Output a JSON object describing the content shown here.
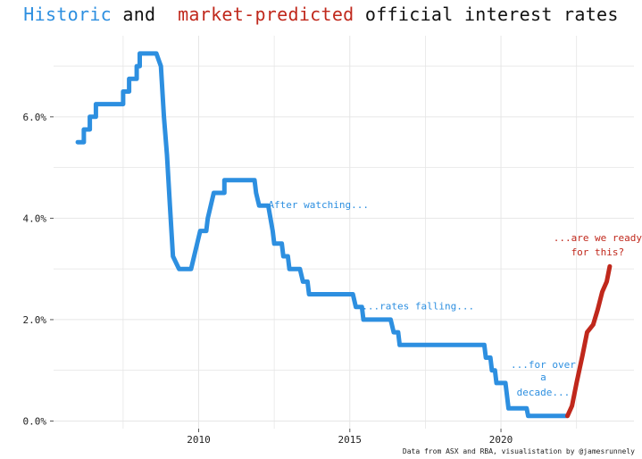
{
  "title": {
    "part1": "Historic",
    "part2": " and  ",
    "part3": "market-predicted",
    "part4": " official interest rates"
  },
  "footer": "Data from ASX and RBA, visualistation by @jamesrunnely",
  "colors": {
    "historic": "#2d8fe0",
    "predicted": "#c0281c",
    "grid": "#e6e6e6",
    "text": "#222222"
  },
  "chart_data": {
    "type": "line",
    "title": "Historic and market-predicted official interest rates",
    "xlabel": "",
    "ylabel": "",
    "xlim": [
      2005.2,
      2024.4
    ],
    "ylim": [
      -0.15,
      7.6
    ],
    "x_ticks": [
      2010,
      2015,
      2020
    ],
    "x_tick_labels": [
      "2010",
      "2015",
      "2020"
    ],
    "y_ticks": [
      0,
      2,
      4,
      6
    ],
    "y_tick_labels": [
      "0.0%",
      "2.0%",
      "4.0%",
      "6.0%"
    ],
    "grid": true,
    "series": [
      {
        "key": "historic",
        "color": "#2d8fe0",
        "points": [
          [
            2006.0,
            5.5
          ],
          [
            2006.2,
            5.5
          ],
          [
            2006.2,
            5.75
          ],
          [
            2006.4,
            5.75
          ],
          [
            2006.4,
            6.0
          ],
          [
            2006.6,
            6.0
          ],
          [
            2006.6,
            6.25
          ],
          [
            2007.5,
            6.25
          ],
          [
            2007.5,
            6.5
          ],
          [
            2007.7,
            6.5
          ],
          [
            2007.7,
            6.75
          ],
          [
            2007.95,
            6.75
          ],
          [
            2007.95,
            7.0
          ],
          [
            2008.05,
            7.0
          ],
          [
            2008.05,
            7.25
          ],
          [
            2008.6,
            7.25
          ],
          [
            2008.75,
            7.0
          ],
          [
            2008.85,
            6.0
          ],
          [
            2008.95,
            5.25
          ],
          [
            2009.05,
            4.25
          ],
          [
            2009.15,
            3.25
          ],
          [
            2009.35,
            3.0
          ],
          [
            2009.75,
            3.0
          ],
          [
            2009.85,
            3.25
          ],
          [
            2009.95,
            3.5
          ],
          [
            2010.05,
            3.75
          ],
          [
            2010.25,
            3.75
          ],
          [
            2010.3,
            4.0
          ],
          [
            2010.5,
            4.5
          ],
          [
            2010.85,
            4.5
          ],
          [
            2010.85,
            4.75
          ],
          [
            2011.85,
            4.75
          ],
          [
            2011.9,
            4.5
          ],
          [
            2012.0,
            4.25
          ],
          [
            2012.3,
            4.25
          ],
          [
            2012.45,
            3.75
          ],
          [
            2012.5,
            3.5
          ],
          [
            2012.75,
            3.5
          ],
          [
            2012.8,
            3.25
          ],
          [
            2012.95,
            3.25
          ],
          [
            2013.0,
            3.0
          ],
          [
            2013.35,
            3.0
          ],
          [
            2013.45,
            2.75
          ],
          [
            2013.6,
            2.75
          ],
          [
            2013.65,
            2.5
          ],
          [
            2015.1,
            2.5
          ],
          [
            2015.2,
            2.25
          ],
          [
            2015.4,
            2.25
          ],
          [
            2015.45,
            2.0
          ],
          [
            2016.35,
            2.0
          ],
          [
            2016.45,
            1.75
          ],
          [
            2016.6,
            1.75
          ],
          [
            2016.65,
            1.5
          ],
          [
            2019.45,
            1.5
          ],
          [
            2019.5,
            1.25
          ],
          [
            2019.65,
            1.25
          ],
          [
            2019.7,
            1.0
          ],
          [
            2019.8,
            1.0
          ],
          [
            2019.85,
            0.75
          ],
          [
            2020.15,
            0.75
          ],
          [
            2020.2,
            0.5
          ],
          [
            2020.25,
            0.25
          ],
          [
            2020.85,
            0.25
          ],
          [
            2020.9,
            0.1
          ],
          [
            2022.15,
            0.1
          ]
        ]
      },
      {
        "key": "predicted",
        "color": "#c0281c",
        "points": [
          [
            2022.2,
            0.1
          ],
          [
            2022.35,
            0.3
          ],
          [
            2022.5,
            0.75
          ],
          [
            2022.7,
            1.3
          ],
          [
            2022.85,
            1.75
          ],
          [
            2023.05,
            1.9
          ],
          [
            2023.2,
            2.2
          ],
          [
            2023.35,
            2.55
          ],
          [
            2023.5,
            2.75
          ],
          [
            2023.6,
            3.05
          ]
        ]
      }
    ],
    "annotations": [
      {
        "text": "After watching...",
        "x": 2012.3,
        "y": 4.2,
        "anchor": "start",
        "color": "#2d8fe0"
      },
      {
        "text": "...rates falling...",
        "x": 2015.4,
        "y": 2.2,
        "anchor": "start",
        "color": "#2d8fe0"
      },
      {
        "text": "...for over",
        "x": 2021.4,
        "y": 1.05,
        "anchor": "middle",
        "color": "#2d8fe0"
      },
      {
        "text": "a",
        "x": 2021.4,
        "y": 0.8,
        "anchor": "middle",
        "color": "#2d8fe0"
      },
      {
        "text": "decade...",
        "x": 2021.4,
        "y": 0.5,
        "anchor": "middle",
        "color": "#2d8fe0"
      },
      {
        "text": "...are we ready",
        "x": 2023.2,
        "y": 3.55,
        "anchor": "middle",
        "color": "#c0281c"
      },
      {
        "text": "for this?",
        "x": 2023.2,
        "y": 3.27,
        "anchor": "middle",
        "color": "#c0281c"
      }
    ]
  }
}
